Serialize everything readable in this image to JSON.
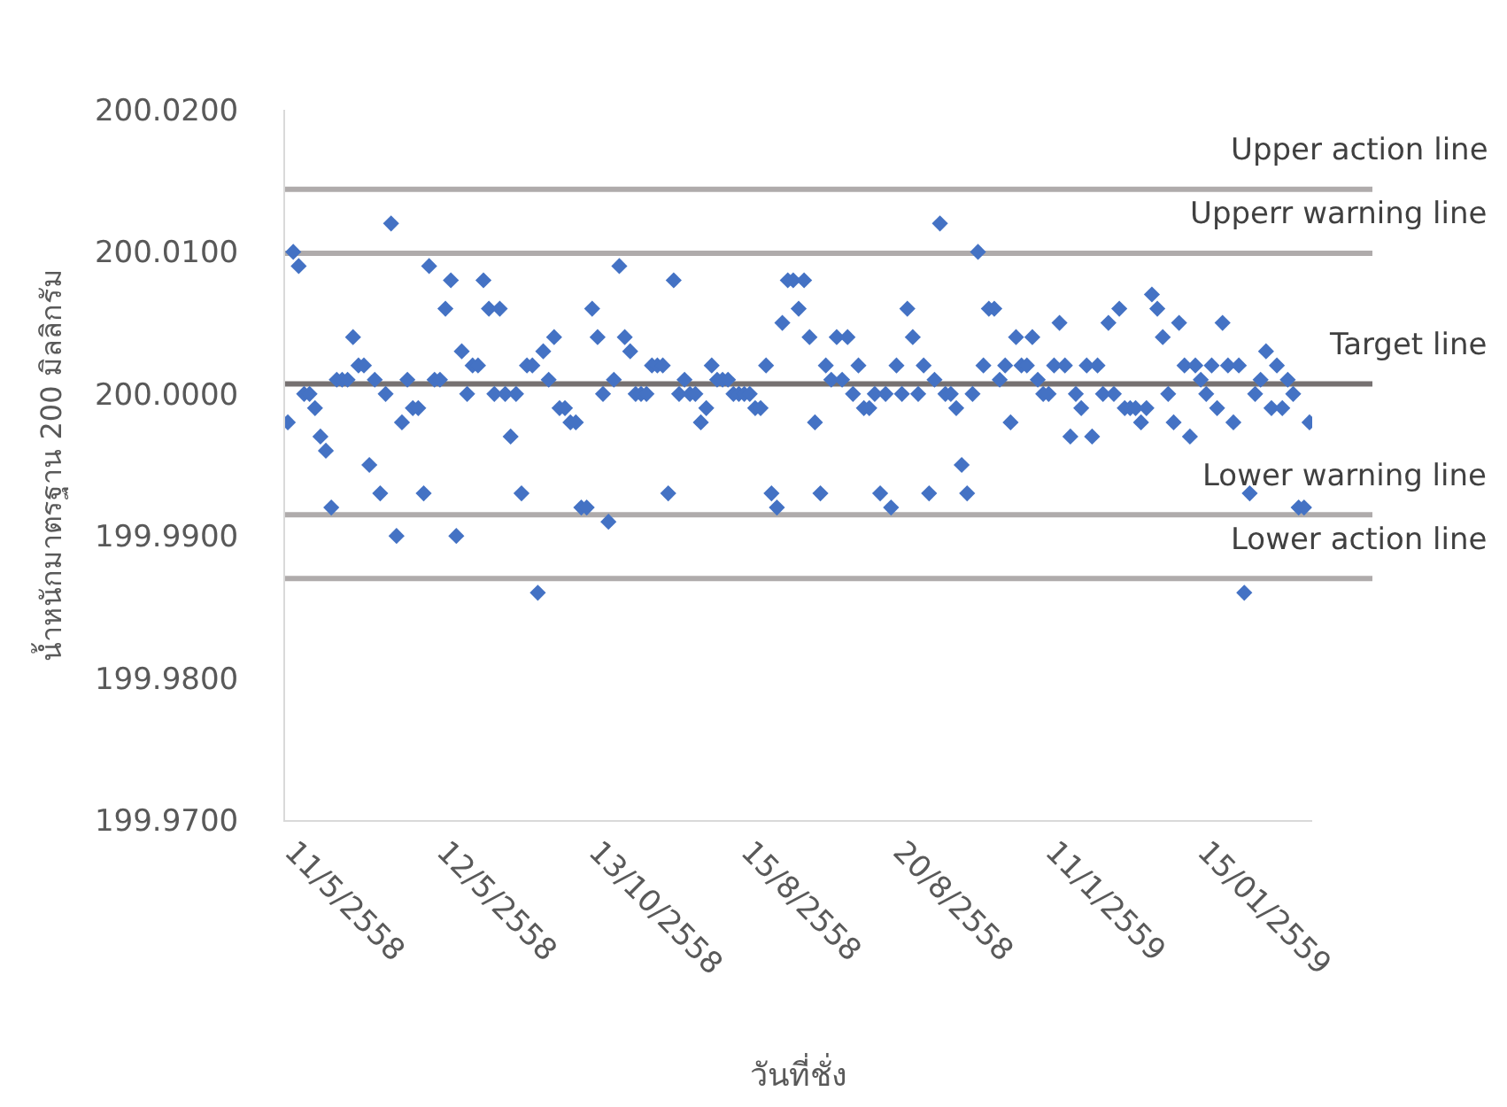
{
  "chart_data": {
    "type": "scatter",
    "xlabel": "วันที่ชั่ง",
    "ylabel": "น้ำหนักมาตรฐาน 200 มิลลิกรัม",
    "categories": [
      "11/5/2558",
      null,
      null,
      null,
      null,
      null,
      null,
      null,
      null,
      null,
      null,
      null,
      null,
      null,
      null,
      null,
      null,
      null,
      null,
      null,
      null,
      null,
      null,
      null,
      null,
      null,
      null,
      null,
      "12/5/2558",
      null,
      null,
      null,
      null,
      null,
      null,
      null,
      null,
      null,
      null,
      null,
      null,
      null,
      null,
      null,
      null,
      null,
      null,
      null,
      null,
      null,
      null,
      null,
      null,
      null,
      null,
      null,
      "13/10/2558",
      null,
      null,
      null,
      null,
      null,
      null,
      null,
      null,
      null,
      null,
      null,
      null,
      null,
      null,
      null,
      null,
      null,
      null,
      null,
      null,
      null,
      null,
      null,
      null,
      null,
      null,
      null,
      "15/8/2558",
      null,
      null,
      null,
      null,
      null,
      null,
      null,
      null,
      null,
      null,
      null,
      null,
      null,
      null,
      null,
      null,
      null,
      null,
      null,
      null,
      null,
      null,
      null,
      null,
      null,
      null,
      null,
      "20/8/2558",
      null,
      null,
      null,
      null,
      null,
      null,
      null,
      null,
      null,
      null,
      null,
      null,
      null,
      null,
      null,
      null,
      null,
      null,
      null,
      null,
      null,
      null,
      null,
      null,
      null,
      null,
      null,
      "11/1/2559",
      null,
      null,
      null,
      null,
      null,
      null,
      null,
      null,
      null,
      null,
      null,
      null,
      null,
      null,
      null,
      null,
      null,
      null,
      null,
      null,
      null,
      null,
      null,
      null,
      null,
      null,
      null,
      "15/01/2559",
      null,
      null,
      null,
      null,
      null,
      null,
      null,
      null,
      null,
      null,
      null,
      null,
      null,
      null,
      null,
      null,
      null,
      null,
      null,
      null
    ],
    "values": [
      199.998,
      200.01,
      200.009,
      200.0,
      200.0,
      199.999,
      199.997,
      199.996,
      199.992,
      200.001,
      200.001,
      200.001,
      200.004,
      200.002,
      200.002,
      199.995,
      200.001,
      199.993,
      200.0,
      200.012,
      199.99,
      199.998,
      200.001,
      199.999,
      199.999,
      199.993,
      200.009,
      200.001,
      200.001,
      200.006,
      200.008,
      199.99,
      200.003,
      200.0,
      200.002,
      200.002,
      200.008,
      200.006,
      200.0,
      200.006,
      200.0,
      199.997,
      200.0,
      199.993,
      200.002,
      200.002,
      199.986,
      200.003,
      200.001,
      200.004,
      199.999,
      199.999,
      199.998,
      199.998,
      199.992,
      199.992,
      200.006,
      200.004,
      200.0,
      199.991,
      200.001,
      200.009,
      200.004,
      200.003,
      200.0,
      200.0,
      200.0,
      200.002,
      200.002,
      200.002,
      199.993,
      200.008,
      200.0,
      200.001,
      200.0,
      200.0,
      199.998,
      199.999,
      200.002,
      200.001,
      200.001,
      200.001,
      200.0,
      200.0,
      200.0,
      200.0,
      199.999,
      199.999,
      200.002,
      199.993,
      199.992,
      200.005,
      200.008,
      200.008,
      200.006,
      200.008,
      200.004,
      199.998,
      199.993,
      200.002,
      200.001,
      200.004,
      200.001,
      200.004,
      200.0,
      200.002,
      199.999,
      199.999,
      200.0,
      199.993,
      200.0,
      199.992,
      200.002,
      200.0,
      200.006,
      200.004,
      200.0,
      200.002,
      199.993,
      200.001,
      200.012,
      200.0,
      200.0,
      199.999,
      199.995,
      199.993,
      200.0,
      200.01,
      200.002,
      200.006,
      200.006,
      200.001,
      200.002,
      199.998,
      200.004,
      200.002,
      200.002,
      200.004,
      200.001,
      200.0,
      200.0,
      200.002,
      200.005,
      200.002,
      199.997,
      200.0,
      199.999,
      200.002,
      199.997,
      200.002,
      200.0,
      200.005,
      200.0,
      200.006,
      199.999,
      199.999,
      199.999,
      199.998,
      199.999,
      200.007,
      200.006,
      200.004,
      200.0,
      199.998,
      200.005,
      200.002,
      199.997,
      200.002,
      200.001,
      200.0,
      200.002,
      199.999,
      200.005,
      200.002,
      199.998,
      200.002,
      199.986,
      199.993,
      200.0,
      200.001,
      200.003,
      199.999,
      200.002,
      199.999,
      200.001,
      200.0,
      199.992,
      199.992,
      199.998
    ],
    "color": "#4472c4",
    "marker": "diamond",
    "ylim": [
      199.97,
      200.02
    ],
    "yticks": [
      {
        "value": 199.97,
        "label": "199.9700"
      },
      {
        "value": 199.98,
        "label": "199.9800"
      },
      {
        "value": 199.99,
        "label": "199.9900"
      },
      {
        "value": 200.0,
        "label": "200.0000"
      },
      {
        "value": 200.01,
        "label": "200.0100"
      },
      {
        "value": 200.02,
        "label": "200.0200"
      }
    ],
    "ref_lines": [
      {
        "axis": "y",
        "value": 200.0144,
        "label": "Upper action line",
        "color": "#afabab"
      },
      {
        "axis": "y",
        "value": 200.0099,
        "label": "Upperr warning line",
        "color": "#afabab"
      },
      {
        "axis": "y",
        "value": 200.0007,
        "label": "Target line",
        "color": "#767171"
      },
      {
        "axis": "y",
        "value": 199.9915,
        "label": "Lower warning line",
        "color": "#afabab"
      },
      {
        "axis": "y",
        "value": 199.987,
        "label": "Lower action line",
        "color": "#afabab"
      }
    ]
  }
}
